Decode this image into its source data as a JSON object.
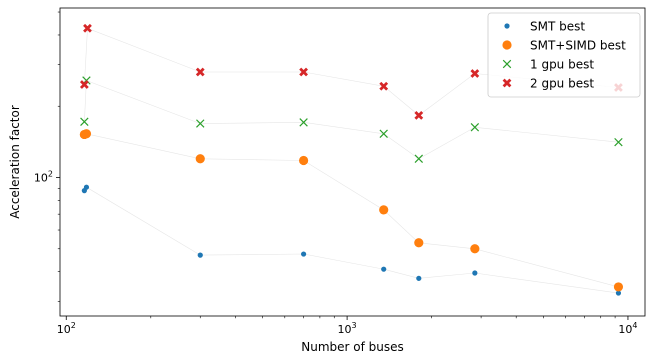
{
  "chart_data": {
    "type": "scatter",
    "xlabel": "Number of buses",
    "ylabel": "Acceleration factor",
    "x_scale": "log",
    "y_scale": "log",
    "xlim": [
      95,
      11500
    ],
    "ylim": [
      26,
      520
    ],
    "x_ticks": [
      {
        "value": 100,
        "base": "10",
        "exp": "2"
      },
      {
        "value": 1000,
        "base": "10",
        "exp": "3"
      },
      {
        "value": 10000,
        "base": "10",
        "exp": "4"
      }
    ],
    "y_ticks": [
      {
        "value": 100,
        "base": "10",
        "exp": "2"
      }
    ],
    "grid": false,
    "legend_position": "top-right",
    "series": [
      {
        "name": "SMT best",
        "color": "#1f77b4",
        "marker": "small-circle",
        "points": [
          {
            "x": 116,
            "y": 88
          },
          {
            "x": 118,
            "y": 91
          },
          {
            "x": 300,
            "y": 47
          },
          {
            "x": 700,
            "y": 47.5
          },
          {
            "x": 1350,
            "y": 41
          },
          {
            "x": 1800,
            "y": 37.5
          },
          {
            "x": 2850,
            "y": 39.5
          },
          {
            "x": 9250,
            "y": 32.5
          }
        ]
      },
      {
        "name": "SMT+SIMD best",
        "color": "#ff7f0e",
        "marker": "circle",
        "points": [
          {
            "x": 116,
            "y": 152
          },
          {
            "x": 118,
            "y": 153
          },
          {
            "x": 300,
            "y": 120
          },
          {
            "x": 700,
            "y": 118
          },
          {
            "x": 1350,
            "y": 73
          },
          {
            "x": 1800,
            "y": 53
          },
          {
            "x": 2850,
            "y": 50
          },
          {
            "x": 9250,
            "y": 34.5
          }
        ]
      },
      {
        "name": "1 gpu best",
        "color": "#2ca02c",
        "marker": "x",
        "points": [
          {
            "x": 116,
            "y": 172
          },
          {
            "x": 118,
            "y": 257
          },
          {
            "x": 300,
            "y": 169
          },
          {
            "x": 700,
            "y": 171
          },
          {
            "x": 1350,
            "y": 153
          },
          {
            "x": 1800,
            "y": 120
          },
          {
            "x": 2850,
            "y": 163
          },
          {
            "x": 9250,
            "y": 141
          }
        ]
      },
      {
        "name": "2 gpu best",
        "color": "#d62728",
        "marker": "bold-x",
        "points": [
          {
            "x": 116,
            "y": 247
          },
          {
            "x": 119,
            "y": 427
          },
          {
            "x": 300,
            "y": 279
          },
          {
            "x": 700,
            "y": 279
          },
          {
            "x": 1350,
            "y": 243
          },
          {
            "x": 1800,
            "y": 183
          },
          {
            "x": 2850,
            "y": 275
          },
          {
            "x": 9250,
            "y": 240
          }
        ]
      }
    ]
  }
}
